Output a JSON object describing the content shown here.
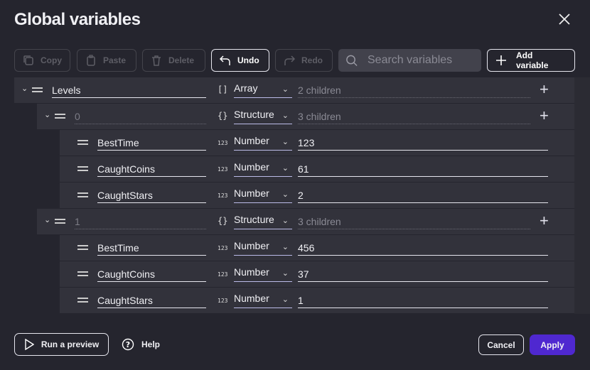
{
  "dialog": {
    "title": "Global variables"
  },
  "toolbar": {
    "copy": "Copy",
    "paste": "Paste",
    "delete": "Delete",
    "undo": "Undo",
    "redo": "Redo",
    "search_placeholder": "Search variables",
    "add": "Add variable"
  },
  "variables": [
    {
      "depth": 0,
      "name": "Levels",
      "type": "Array",
      "type_icon": "[]",
      "value": "2 children",
      "expandable": true,
      "is_index": false
    },
    {
      "depth": 1,
      "name": "0",
      "type": "Structure",
      "type_icon": "{}",
      "value": "3 children",
      "expandable": true,
      "is_index": true
    },
    {
      "depth": 2,
      "name": "BestTime",
      "type": "Number",
      "type_icon": "123",
      "value": "123"
    },
    {
      "depth": 2,
      "name": "CaughtCoins",
      "type": "Number",
      "type_icon": "123",
      "value": "61"
    },
    {
      "depth": 2,
      "name": "CaughtStars",
      "type": "Number",
      "type_icon": "123",
      "value": "2"
    },
    {
      "depth": 1,
      "name": "1",
      "type": "Structure",
      "type_icon": "{}",
      "value": "3 children",
      "expandable": true,
      "is_index": true
    },
    {
      "depth": 2,
      "name": "BestTime",
      "type": "Number",
      "type_icon": "123",
      "value": "456"
    },
    {
      "depth": 2,
      "name": "CaughtCoins",
      "type": "Number",
      "type_icon": "123",
      "value": "37"
    },
    {
      "depth": 2,
      "name": "CaughtStars",
      "type": "Number",
      "type_icon": "123",
      "value": "1"
    }
  ],
  "footer": {
    "preview": "Run a preview",
    "help": "Help",
    "cancel": "Cancel",
    "apply": "Apply"
  },
  "colors": {
    "accent": "#4f28d0",
    "background": "#25252e",
    "row": "#32323b"
  }
}
